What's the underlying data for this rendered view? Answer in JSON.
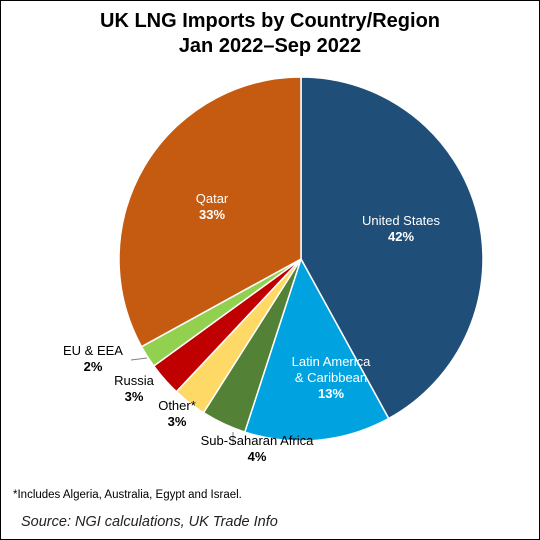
{
  "title": {
    "line1": "UK LNG Imports by Country/Region",
    "line2": "Jan 2022–Sep 2022"
  },
  "chart_data": {
    "type": "pie",
    "start_at": "12 o'clock",
    "direction": "clockwise",
    "slices": [
      {
        "name": "United States",
        "value": 42,
        "value_label": "42%",
        "color": "#1f4e79",
        "label_color": "#ffffff"
      },
      {
        "name": "Latin America & Caribbean",
        "name_lines": [
          "Latin America",
          "& Caribbean"
        ],
        "value": 13,
        "value_label": "13%",
        "color": "#00a3e0",
        "label_color": "#ffffff"
      },
      {
        "name": "Sub-Saharan Africa",
        "value": 4,
        "value_label": "4%",
        "color": "#538135",
        "label_color": "#000000"
      },
      {
        "name": "Other*",
        "value": 3,
        "value_label": "3%",
        "color": "#ffd966",
        "label_color": "#000000"
      },
      {
        "name": "Russia",
        "value": 3,
        "value_label": "3%",
        "color": "#c00000",
        "label_color": "#000000"
      },
      {
        "name": "EU & EEA",
        "value": 2,
        "value_label": "2%",
        "color": "#92d050",
        "label_color": "#000000"
      },
      {
        "name": "Qatar",
        "value": 33,
        "value_label": "33%",
        "color": "#c55a11",
        "label_color": "#ffffff"
      }
    ]
  },
  "footnote": "*Includes Algeria, Australia, Egypt and Israel.",
  "source": "Source: NGI calculations, UK Trade Info"
}
